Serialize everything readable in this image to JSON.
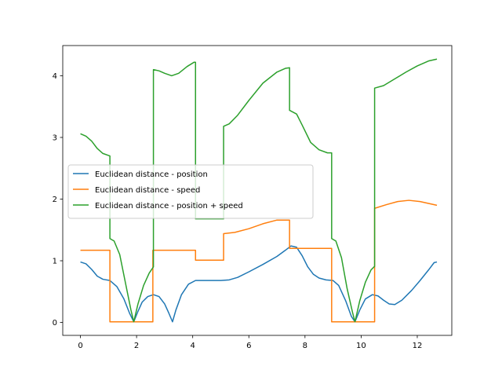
{
  "chart_data": {
    "type": "line",
    "title": "",
    "xlabel": "",
    "ylabel": "",
    "xlim": [
      -0.63,
      13.23
    ],
    "ylim": [
      -0.21,
      4.49
    ],
    "xticks": [
      0,
      2,
      4,
      6,
      8,
      10,
      12
    ],
    "yticks": [
      0,
      1,
      2,
      3,
      4
    ],
    "grid": false,
    "legend_position": "center-left",
    "series": [
      {
        "name": "Euclidean distance - position",
        "color": "#1f77b4",
        "points": [
          [
            0,
            0.98
          ],
          [
            0.2,
            0.95
          ],
          [
            0.4,
            0.86
          ],
          [
            0.6,
            0.75
          ],
          [
            0.8,
            0.7
          ],
          [
            1.05,
            0.68
          ],
          [
            1.3,
            0.58
          ],
          [
            1.55,
            0.38
          ],
          [
            1.75,
            0.15
          ],
          [
            1.9,
            0.01
          ],
          [
            2.05,
            0.18
          ],
          [
            2.2,
            0.33
          ],
          [
            2.4,
            0.42
          ],
          [
            2.6,
            0.45
          ],
          [
            2.8,
            0.42
          ],
          [
            3.0,
            0.3
          ],
          [
            3.15,
            0.15
          ],
          [
            3.28,
            0.01
          ],
          [
            3.4,
            0.2
          ],
          [
            3.6,
            0.45
          ],
          [
            3.85,
            0.62
          ],
          [
            4.1,
            0.68
          ],
          [
            4.6,
            0.68
          ],
          [
            5.0,
            0.68
          ],
          [
            5.3,
            0.69
          ],
          [
            5.6,
            0.73
          ],
          [
            6.0,
            0.82
          ],
          [
            6.5,
            0.94
          ],
          [
            7.0,
            1.07
          ],
          [
            7.3,
            1.17
          ],
          [
            7.5,
            1.24
          ],
          [
            7.7,
            1.22
          ],
          [
            7.9,
            1.08
          ],
          [
            8.1,
            0.9
          ],
          [
            8.3,
            0.78
          ],
          [
            8.5,
            0.72
          ],
          [
            8.75,
            0.69
          ],
          [
            9.0,
            0.68
          ],
          [
            9.2,
            0.6
          ],
          [
            9.45,
            0.35
          ],
          [
            9.65,
            0.1
          ],
          [
            9.78,
            0.01
          ],
          [
            9.95,
            0.2
          ],
          [
            10.15,
            0.38
          ],
          [
            10.4,
            0.45
          ],
          [
            10.6,
            0.43
          ],
          [
            10.8,
            0.36
          ],
          [
            11.0,
            0.3
          ],
          [
            11.2,
            0.29
          ],
          [
            11.45,
            0.36
          ],
          [
            11.8,
            0.52
          ],
          [
            12.1,
            0.68
          ],
          [
            12.4,
            0.85
          ],
          [
            12.6,
            0.97
          ],
          [
            12.7,
            0.98
          ]
        ]
      },
      {
        "name": "Euclidean distance - speed",
        "color": "#ff7f0e",
        "points": [
          [
            0,
            1.17
          ],
          [
            1.05,
            1.17
          ],
          [
            1.05,
            0.01
          ],
          [
            2.58,
            0.01
          ],
          [
            2.58,
            1.17
          ],
          [
            4.1,
            1.17
          ],
          [
            4.1,
            1.01
          ],
          [
            5.1,
            1.01
          ],
          [
            5.1,
            1.44
          ],
          [
            5.5,
            1.46
          ],
          [
            6.0,
            1.52
          ],
          [
            6.5,
            1.6
          ],
          [
            7.0,
            1.66
          ],
          [
            7.45,
            1.66
          ],
          [
            7.45,
            1.2
          ],
          [
            8.95,
            1.2
          ],
          [
            8.95,
            0.01
          ],
          [
            10.48,
            0.01
          ],
          [
            10.48,
            1.85
          ],
          [
            10.9,
            1.91
          ],
          [
            11.3,
            1.96
          ],
          [
            11.7,
            1.98
          ],
          [
            12.1,
            1.96
          ],
          [
            12.4,
            1.93
          ],
          [
            12.7,
            1.9
          ]
        ]
      },
      {
        "name": "Euclidean distance - position + speed",
        "color": "#2ca02c",
        "points": [
          [
            0,
            3.06
          ],
          [
            0.2,
            3.02
          ],
          [
            0.4,
            2.94
          ],
          [
            0.6,
            2.82
          ],
          [
            0.8,
            2.74
          ],
          [
            1.05,
            2.7
          ],
          [
            1.05,
            1.36
          ],
          [
            1.2,
            1.32
          ],
          [
            1.4,
            1.1
          ],
          [
            1.6,
            0.65
          ],
          [
            1.8,
            0.2
          ],
          [
            1.9,
            0.01
          ],
          [
            2.05,
            0.3
          ],
          [
            2.25,
            0.6
          ],
          [
            2.45,
            0.8
          ],
          [
            2.6,
            0.9
          ],
          [
            2.6,
            4.1
          ],
          [
            2.8,
            4.08
          ],
          [
            3.0,
            4.04
          ],
          [
            3.25,
            4.0
          ],
          [
            3.5,
            4.04
          ],
          [
            3.8,
            4.15
          ],
          [
            4.05,
            4.22
          ],
          [
            4.1,
            4.22
          ],
          [
            4.1,
            1.68
          ],
          [
            5.1,
            1.68
          ],
          [
            5.1,
            3.18
          ],
          [
            5.3,
            3.22
          ],
          [
            5.6,
            3.36
          ],
          [
            6.0,
            3.6
          ],
          [
            6.5,
            3.88
          ],
          [
            7.0,
            4.06
          ],
          [
            7.3,
            4.12
          ],
          [
            7.45,
            4.13
          ],
          [
            7.45,
            3.44
          ],
          [
            7.7,
            3.38
          ],
          [
            7.9,
            3.2
          ],
          [
            8.2,
            2.92
          ],
          [
            8.5,
            2.8
          ],
          [
            8.8,
            2.75
          ],
          [
            8.95,
            2.75
          ],
          [
            8.95,
            1.36
          ],
          [
            9.1,
            1.32
          ],
          [
            9.3,
            1.05
          ],
          [
            9.5,
            0.55
          ],
          [
            9.7,
            0.15
          ],
          [
            9.78,
            0.01
          ],
          [
            9.95,
            0.35
          ],
          [
            10.15,
            0.65
          ],
          [
            10.35,
            0.85
          ],
          [
            10.48,
            0.91
          ],
          [
            10.48,
            3.8
          ],
          [
            10.8,
            3.84
          ],
          [
            11.2,
            3.95
          ],
          [
            11.6,
            4.06
          ],
          [
            12.0,
            4.16
          ],
          [
            12.4,
            4.24
          ],
          [
            12.7,
            4.27
          ]
        ]
      }
    ]
  }
}
